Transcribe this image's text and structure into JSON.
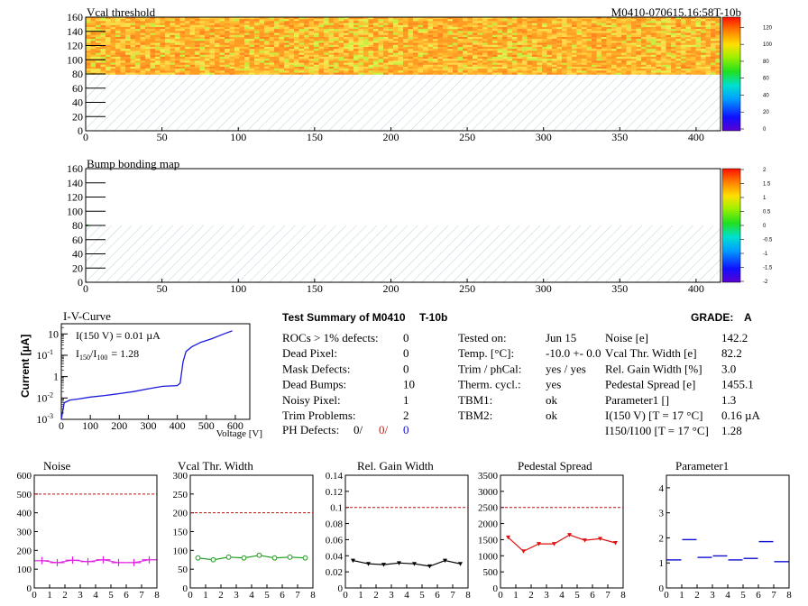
{
  "header": {
    "title_left": "Vcal threshold",
    "title_right": "M0410-070615.16:58T-10b"
  },
  "map1": {
    "yticks": [
      "0",
      "20",
      "40",
      "60",
      "80",
      "100",
      "120",
      "140",
      "160"
    ],
    "xticks": [
      "0",
      "50",
      "100",
      "150",
      "200",
      "250",
      "300",
      "350",
      "400"
    ],
    "palette_ticks": [
      "0",
      "20",
      "40",
      "60",
      "80",
      "100",
      "120"
    ]
  },
  "map2": {
    "title": "Bump bonding map",
    "yticks": [
      "0",
      "20",
      "40",
      "60",
      "80",
      "100",
      "120",
      "140",
      "160"
    ],
    "xticks": [
      "0",
      "50",
      "100",
      "150",
      "200",
      "250",
      "300",
      "350",
      "400"
    ],
    "palette_ticks": [
      "-2",
      "-1.5",
      "-1",
      "-0.5",
      "0",
      "0.5",
      "1",
      "1.5",
      "2"
    ]
  },
  "iv": {
    "title": "I-V-Curve",
    "ylabel": "Current [µA]",
    "xlabel": "Voltage [V]",
    "line1": "I(150 V) = 0.01 µA",
    "line2_pre": "I",
    "line2_sub1": "150",
    "line2_mid": "/I",
    "line2_sub2": "100",
    "line2_post": "=  1.28",
    "yticks": [
      "10",
      "10",
      "1",
      "10",
      "10"
    ],
    "yexps": [
      "",
      "-1",
      "",
      "-2",
      "-3"
    ],
    "xticks": [
      "0",
      "100",
      "200",
      "300",
      "400",
      "500",
      "600"
    ]
  },
  "summary": {
    "title": "Test Summary of M0410",
    "code": "T-10b",
    "grade_label": "GRADE:",
    "grade": "A",
    "left_rows": [
      {
        "k": "ROCs > 1% defects:",
        "v": "0"
      },
      {
        "k": "Dead Pixel:",
        "v": "0"
      },
      {
        "k": "Mask Defects:",
        "v": "0"
      },
      {
        "k": "Dead Bumps:",
        "v": "10"
      },
      {
        "k": "Noisy Pixel:",
        "v": "1"
      },
      {
        "k": "Trim Problems:",
        "v": "2"
      }
    ],
    "ph_label": "PH Defects:",
    "ph_values": [
      "0/",
      "0/",
      "0"
    ],
    "mid_rows": [
      {
        "k": "Tested on:",
        "v": "Jun 15"
      },
      {
        "k": "Temp. [°C]:",
        "v": "-10.0 +- 0.0"
      },
      {
        "k": "Trim / phCal:",
        "v": "yes / yes"
      },
      {
        "k": "Therm. cycl.:",
        "v": "yes"
      },
      {
        "k": "TBM1:",
        "v": "ok"
      },
      {
        "k": "TBM2:",
        "v": "ok"
      }
    ],
    "right_rows": [
      {
        "k": "Noise [e]",
        "v": "142.2"
      },
      {
        "k": "Vcal Thr. Width [e]",
        "v": "82.2"
      },
      {
        "k": "Rel. Gain Width [%]",
        "v": "3.0"
      },
      {
        "k": "Pedestal Spread [e]",
        "v": "1455.1"
      },
      {
        "k": "Parameter1 []",
        "v": "1.3"
      },
      {
        "k": "I(150 V) [T = 17 °C]",
        "v": "0.16 µA"
      },
      {
        "k": "I150/I100  [T = 17 °C]",
        "v": "1.28"
      }
    ]
  },
  "chart_data": [
    {
      "type": "heatmap",
      "title": "Vcal threshold",
      "xlim": [
        0,
        416
      ],
      "ylim": [
        0,
        160
      ],
      "zlim": [
        0,
        130
      ]
    },
    {
      "type": "heatmap",
      "title": "Bump bonding map",
      "xlim": [
        0,
        416
      ],
      "ylim": [
        0,
        160
      ],
      "zlim": [
        -2,
        2
      ]
    },
    {
      "type": "line",
      "title": "I-V-Curve",
      "xlabel": "Voltage [V]",
      "ylabel": "Current [µA]",
      "yscale": "log",
      "xlim": [
        0,
        650
      ],
      "ylim": [
        0.001,
        30
      ],
      "x": [
        0,
        10,
        30,
        60,
        100,
        150,
        200,
        250,
        300,
        350,
        400,
        410,
        420,
        430,
        450,
        480,
        520,
        560,
        590
      ],
      "y": [
        0.001,
        0.006,
        0.008,
        0.009,
        0.011,
        0.013,
        0.016,
        0.02,
        0.027,
        0.035,
        0.038,
        0.05,
        0.5,
        1.5,
        2.5,
        4,
        6,
        10,
        14
      ]
    },
    {
      "type": "scatter",
      "title": "Noise",
      "xlim": [
        0,
        8
      ],
      "ylim": [
        0,
        600
      ],
      "reference": 500,
      "x": [
        0.5,
        1.5,
        2.5,
        3.5,
        4.5,
        5.5,
        6.5,
        7.5
      ],
      "y": [
        145,
        135,
        148,
        140,
        150,
        135,
        135,
        150
      ]
    },
    {
      "type": "line",
      "title": "Vcal Thr. Width",
      "xlim": [
        0,
        8
      ],
      "ylim": [
        0,
        300
      ],
      "reference": 200,
      "x": [
        0.5,
        1.5,
        2.5,
        3.5,
        4.5,
        5.5,
        6.5,
        7.5
      ],
      "y": [
        80,
        75,
        82,
        80,
        87,
        80,
        82,
        80
      ]
    },
    {
      "type": "line",
      "title": "Rel. Gain Width",
      "xlim": [
        0,
        8
      ],
      "ylim": [
        0,
        0.14
      ],
      "reference": 0.1,
      "x": [
        0.5,
        1.5,
        2.5,
        3.5,
        4.5,
        5.5,
        6.5,
        7.5
      ],
      "y": [
        0.034,
        0.03,
        0.029,
        0.031,
        0.03,
        0.027,
        0.034,
        0.03
      ]
    },
    {
      "type": "line",
      "title": "Pedestal Spread",
      "xlim": [
        0,
        8
      ],
      "ylim": [
        0,
        3500
      ],
      "reference": 2500,
      "x": [
        0.5,
        1.5,
        2.5,
        3.5,
        4.5,
        5.5,
        6.5,
        7.5
      ],
      "y": [
        1570,
        1140,
        1370,
        1370,
        1650,
        1480,
        1530,
        1400
      ]
    },
    {
      "type": "scatter",
      "title": "Parameter1",
      "xlim": [
        0,
        8
      ],
      "ylim": [
        0,
        4.5
      ],
      "x": [
        0.5,
        1.5,
        2.5,
        3.5,
        4.5,
        5.5,
        6.5,
        7.5
      ],
      "y": [
        1.12,
        1.93,
        1.22,
        1.28,
        1.12,
        1.18,
        1.85,
        1.05
      ]
    }
  ],
  "minis": {
    "xticks": [
      "0",
      "1",
      "2",
      "3",
      "4",
      "5",
      "6",
      "7",
      "8"
    ],
    "noise_yticks": [
      "0",
      "100",
      "200",
      "300",
      "400",
      "500",
      "600"
    ],
    "vcal_yticks": [
      "0",
      "50",
      "100",
      "150",
      "200",
      "250",
      "300"
    ],
    "gain_yticks": [
      "0",
      "0.02",
      "0.04",
      "0.06",
      "0.08",
      "0.1",
      "0.12",
      "0.14"
    ],
    "ped_yticks": [
      "0",
      "500",
      "1000",
      "1500",
      "2000",
      "2500",
      "3000",
      "3500"
    ],
    "par_yticks": [
      "0",
      "1",
      "2",
      "3",
      "4"
    ]
  },
  "colors": {
    "noise": "#e020e0",
    "vcal": "#1a9a1a",
    "gain": "#000000",
    "ped": "#e01010",
    "par": "#1010d0",
    "iv": "#1a1adc",
    "ref": "#c01010",
    "hatch": "#9cc0c8"
  }
}
